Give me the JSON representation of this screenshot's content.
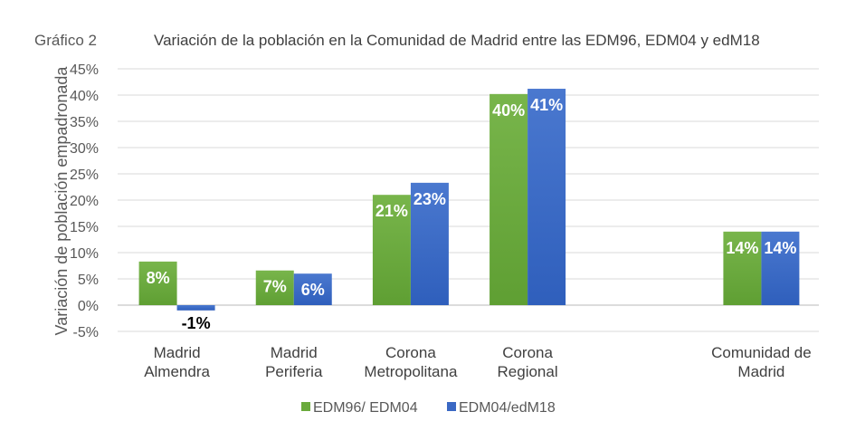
{
  "chart_data": {
    "type": "bar",
    "figure_label": "Gráfico 2",
    "title": "Variación de la población en la Comunidad de Madrid entre las EDM96, EDM04 y edM18",
    "xlabel": "",
    "ylabel": "Variación de población empadronada",
    "ylim": [
      -5,
      45
    ],
    "yticks": [
      -5,
      0,
      5,
      10,
      15,
      20,
      25,
      30,
      35,
      40,
      45
    ],
    "ytick_labels": [
      "-5%",
      "0%",
      "5%",
      "10%",
      "15%",
      "20%",
      "25%",
      "30%",
      "35%",
      "40%",
      "45%"
    ],
    "grid": true,
    "legend_position": "bottom",
    "categories": [
      [
        "Madrid",
        "Almendra"
      ],
      [
        "Madrid",
        "Periferia"
      ],
      [
        "Corona",
        "Metropolitana"
      ],
      [
        "Corona",
        "Regional"
      ],
      [
        "",
        ""
      ],
      [
        "Comunidad de",
        "Madrid"
      ]
    ],
    "series": [
      {
        "name": "EDM96/ EDM04",
        "color": "#6aaa3c",
        "values": [
          8.3,
          6.6,
          21.0,
          40.2,
          null,
          14.0
        ],
        "labels": [
          "8%",
          "7%",
          "21%",
          "40%",
          "",
          "14%"
        ]
      },
      {
        "name": "EDM04/edM18",
        "color": "#3a68c4",
        "values": [
          -1.0,
          6.0,
          23.3,
          41.2,
          null,
          14.0
        ],
        "labels": [
          "-1%",
          "6%",
          "23%",
          "41%",
          "",
          "14%"
        ]
      }
    ]
  }
}
